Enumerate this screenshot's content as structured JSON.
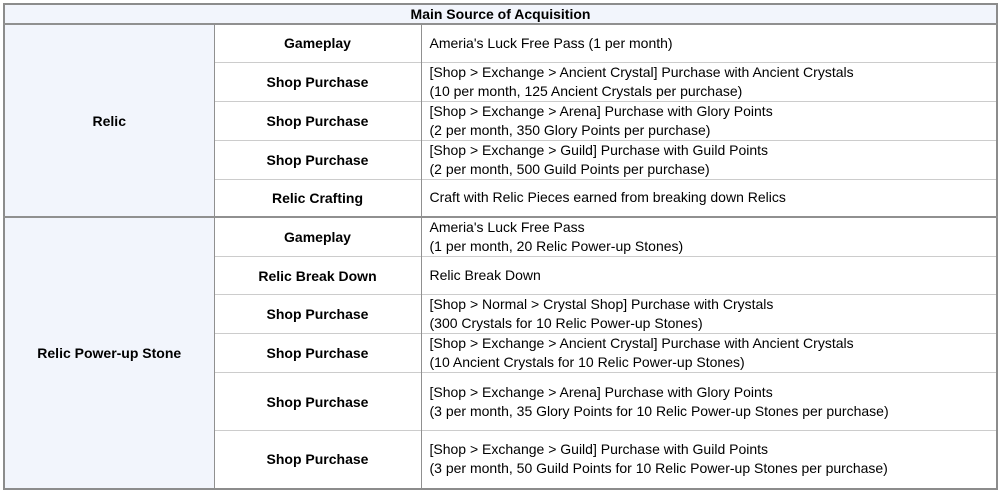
{
  "table": {
    "title": "Main Source of Acquisition",
    "sections": [
      {
        "category": "Relic",
        "rows": [
          {
            "method": "Gameplay",
            "desc": [
              "Ameria's Luck Free Pass (1 per month)"
            ]
          },
          {
            "method": "Shop Purchase",
            "desc": [
              "[Shop > Exchange > Ancient Crystal] Purchase with Ancient Crystals",
              "(10 per month, 125 Ancient Crystals per purchase)"
            ]
          },
          {
            "method": "Shop Purchase",
            "desc": [
              "[Shop > Exchange > Arena] Purchase with Glory Points",
              "(2 per month, 350 Glory Points per purchase)"
            ]
          },
          {
            "method": "Shop Purchase",
            "desc": [
              "[Shop > Exchange > Guild] Purchase with Guild Points",
              "(2 per month, 500 Guild Points per purchase)"
            ]
          },
          {
            "method": "Relic Crafting",
            "desc": [
              "Craft with Relic Pieces earned from breaking down Relics"
            ]
          }
        ]
      },
      {
        "category": "Relic Power-up Stone",
        "rows": [
          {
            "method": "Gameplay",
            "desc": [
              "Ameria's Luck Free Pass",
              "(1 per month, 20 Relic Power-up Stones)"
            ]
          },
          {
            "method": "Relic Break Down",
            "desc": [
              "Relic Break Down"
            ]
          },
          {
            "method": "Shop Purchase",
            "desc": [
              "[Shop > Normal > Crystal Shop] Purchase with Crystals",
              "(300 Crystals for 10 Relic Power-up Stones)"
            ]
          },
          {
            "method": "Shop Purchase",
            "desc": [
              "[Shop > Exchange > Ancient Crystal] Purchase with Ancient Crystals",
              "(10 Ancient Crystals for 10 Relic Power-up Stones)"
            ]
          },
          {
            "method": "Shop Purchase",
            "desc": [
              "[Shop > Exchange > Arena] Purchase with Glory Points",
              "(3 per month, 35 Glory Points for 10 Relic Power-up Stones per purchase)"
            ]
          },
          {
            "method": "Shop Purchase",
            "desc": [
              "[Shop > Exchange > Guild] Purchase with Guild Points",
              "(3 per month, 50 Guild Points for 10 Relic Power-up Stones per purchase)"
            ]
          }
        ]
      }
    ]
  },
  "colors": {
    "header_bg": "#f2f5fc",
    "cell_bg": "#ffffff",
    "border_outer": "#8c8c8c",
    "border_dark": "#909090",
    "border_light": "#cccccc",
    "text": "#000000"
  }
}
